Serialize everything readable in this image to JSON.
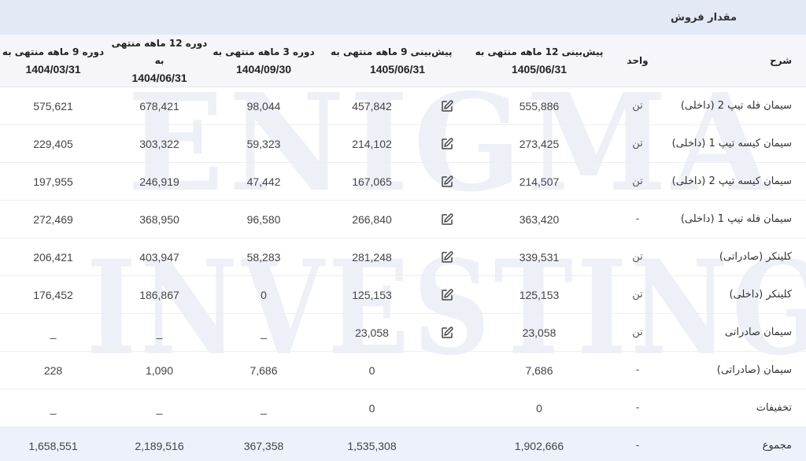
{
  "panel": {
    "title": "مقدار فروش"
  },
  "watermark": {
    "line1": "ENIGMA",
    "line2": "INVESTING"
  },
  "table": {
    "headers": {
      "description": "شرح",
      "unit": "واحد",
      "forecast_12m": {
        "line1": "پیش‌بینی 12 ماهه منتهی به",
        "line2": "1405/06/31"
      },
      "forecast_9m": {
        "line1": "پیش‌بینی 9 ماهه منتهی به",
        "line2": "1405/06/31"
      },
      "period_3m": {
        "line1": "دوره 3 ماهه منتهی به",
        "line2": "1404/09/30"
      },
      "period_12m": {
        "line1": "دوره 12 ماهه منتهی به",
        "line2": "1404/06/31"
      },
      "period_9m": {
        "line1": "دوره 9 ماهه منتهی به",
        "line2": "1404/03/31"
      }
    },
    "rows": [
      {
        "description": "سیمان فله تیپ 2 (داخلی)",
        "unit": "تن",
        "forecast_12m": "555,886",
        "editable": true,
        "forecast_9m": "457,842",
        "period_3m": "98,044",
        "period_12m": "678,421",
        "period_9m": "575,621"
      },
      {
        "description": "سیمان کیسه تیپ 1 (داخلی)",
        "unit": "تن",
        "forecast_12m": "273,425",
        "editable": true,
        "forecast_9m": "214,102",
        "period_3m": "59,323",
        "period_12m": "303,322",
        "period_9m": "229,405"
      },
      {
        "description": "سیمان کیسه تیپ 2 (داخلی)",
        "unit": "تن",
        "forecast_12m": "214,507",
        "editable": true,
        "forecast_9m": "167,065",
        "period_3m": "47,442",
        "period_12m": "246,919",
        "period_9m": "197,955"
      },
      {
        "description": "سیمان فله تیپ 1 (داخلی)",
        "unit": "-",
        "forecast_12m": "363,420",
        "editable": true,
        "forecast_9m": "266,840",
        "period_3m": "96,580",
        "period_12m": "368,950",
        "period_9m": "272,469"
      },
      {
        "description": "کلینکر (صادراتی)",
        "unit": "تن",
        "forecast_12m": "339,531",
        "editable": true,
        "forecast_9m": "281,248",
        "period_3m": "58,283",
        "period_12m": "403,947",
        "period_9m": "206,421"
      },
      {
        "description": "کلینکر (داخلی)",
        "unit": "تن",
        "forecast_12m": "125,153",
        "editable": true,
        "forecast_9m": "125,153",
        "period_3m": "0",
        "period_12m": "186,867",
        "period_9m": "176,452"
      },
      {
        "description": "سیمان صادراتی",
        "unit": "تن",
        "forecast_12m": "23,058",
        "editable": true,
        "forecast_9m": "23,058",
        "period_3m": "_",
        "period_12m": "_",
        "period_9m": "_"
      },
      {
        "description": "سیمان (صادراتی)",
        "unit": "-",
        "forecast_12m": "7,686",
        "editable": false,
        "forecast_9m": "0",
        "period_3m": "7,686",
        "period_12m": "1,090",
        "period_9m": "228"
      },
      {
        "description": "تخفیفات",
        "unit": "-",
        "forecast_12m": "0",
        "editable": false,
        "forecast_9m": "0",
        "period_3m": "_",
        "period_12m": "_",
        "period_9m": "_"
      }
    ],
    "total": {
      "description": "مجموع",
      "unit": "-",
      "forecast_12m": "1,902,666",
      "forecast_9m": "1,535,308",
      "period_3m": "367,358",
      "period_12m": "2,189,516",
      "period_9m": "1,658,551"
    }
  },
  "colors": {
    "title_bar_bg": "#e3e9f5",
    "header_bg": "#f5f5fa",
    "total_row_bg": "#edf1fb",
    "text": "#333333"
  }
}
